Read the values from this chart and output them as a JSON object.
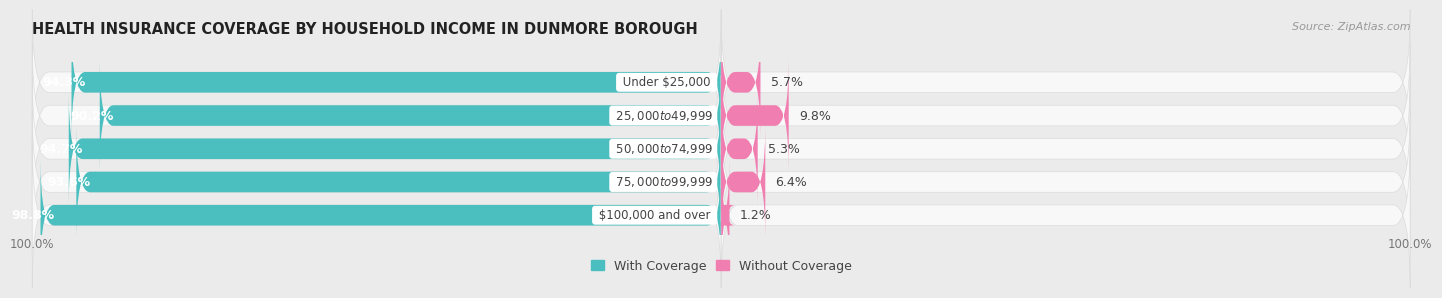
{
  "title": "HEALTH INSURANCE COVERAGE BY HOUSEHOLD INCOME IN DUNMORE BOROUGH",
  "source": "Source: ZipAtlas.com",
  "categories": [
    "Under $25,000",
    "$25,000 to $49,999",
    "$50,000 to $74,999",
    "$75,000 to $99,999",
    "$100,000 and over"
  ],
  "with_coverage": [
    94.3,
    90.2,
    94.7,
    93.6,
    98.8
  ],
  "without_coverage": [
    5.7,
    9.8,
    5.3,
    6.4,
    1.2
  ],
  "with_color": "#4BBFBF",
  "without_color": "#F07EB0",
  "background_color": "#ebebeb",
  "bar_bg_color": "#dcdcdc",
  "bar_inner_bg": "#f8f8f8",
  "legend_with": "With Coverage",
  "legend_without": "Without Coverage",
  "bar_height": 0.62,
  "title_fontsize": 10.5,
  "label_fontsize": 9,
  "tick_fontsize": 8.5,
  "source_fontsize": 8
}
